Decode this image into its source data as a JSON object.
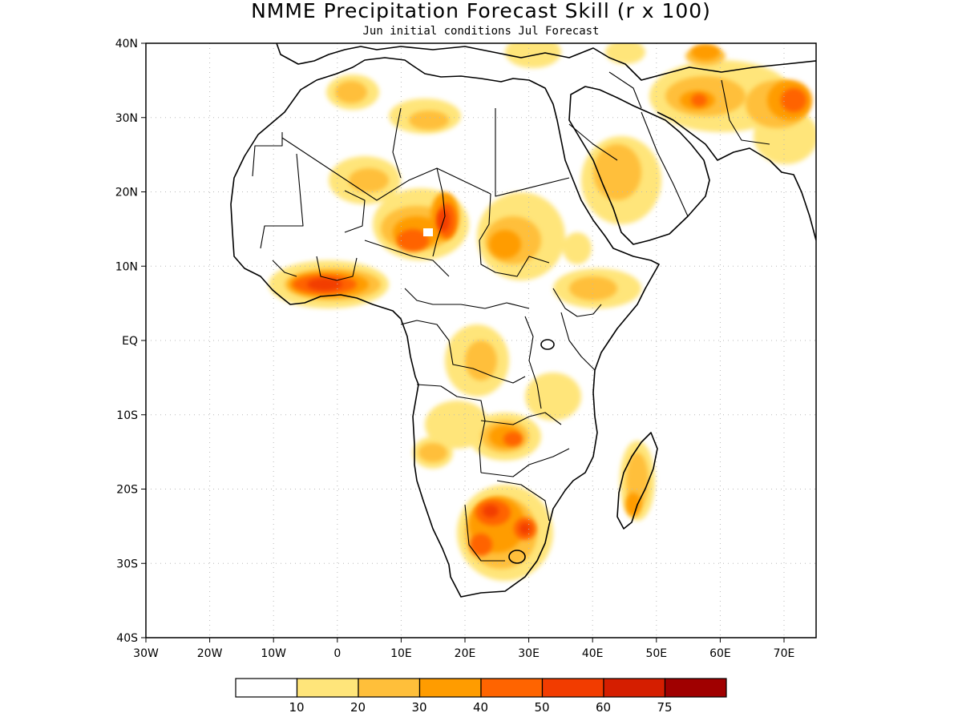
{
  "title": "NMME Precipitation Forecast Skill (r x 100)",
  "subtitle": "Jun initial conditions  Jul Forecast",
  "axes": {
    "lon_ticks": [
      "30W",
      "20W",
      "10W",
      "0",
      "10E",
      "20E",
      "30E",
      "40E",
      "50E",
      "60E",
      "70E"
    ],
    "lat_ticks": [
      "40N",
      "30N",
      "20N",
      "10N",
      "EQ",
      "10S",
      "20S",
      "30S",
      "40S"
    ]
  },
  "colorbar": {
    "colors": [
      "#ffffff",
      "#ffe57a",
      "#ffbf3a",
      "#ff9c00",
      "#ff6400",
      "#f23c00",
      "#d51e00",
      "#a00000"
    ],
    "labels": [
      "10",
      "20",
      "30",
      "40",
      "50",
      "60",
      "75"
    ]
  }
}
